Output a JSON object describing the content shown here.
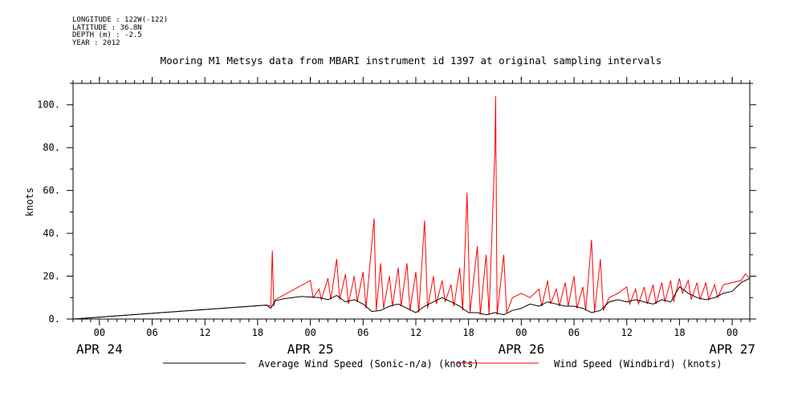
{
  "header": {
    "meta_lines": [
      "LONGITUDE : 122W(-122)",
      "LATITUDE : 36.8N",
      "DEPTH (m) : -2.5",
      "YEAR : 2012"
    ]
  },
  "chart_data": {
    "type": "line",
    "title": "Mooring M1 Metsys data from MBARI instrument id 1397 at original sampling intervals",
    "xlabel": "",
    "ylabel": "knots",
    "xlim": [
      "2012-04-23T21:00",
      "2012-04-27T02:00"
    ],
    "ylim": [
      0,
      110
    ],
    "yticks": [
      0,
      20,
      40,
      60,
      80,
      100
    ],
    "ytick_labels": [
      "0.",
      "20.",
      "40.",
      "60.",
      "80.",
      "100."
    ],
    "xticks": [
      {
        "t": "2012-04-24T00:00",
        "label": "00"
      },
      {
        "t": "2012-04-24T06:00",
        "label": "06"
      },
      {
        "t": "2012-04-24T12:00",
        "label": "12"
      },
      {
        "t": "2012-04-24T18:00",
        "label": "18"
      },
      {
        "t": "2012-04-25T00:00",
        "label": "00"
      },
      {
        "t": "2012-04-25T06:00",
        "label": "06"
      },
      {
        "t": "2012-04-25T12:00",
        "label": "12"
      },
      {
        "t": "2012-04-25T18:00",
        "label": "18"
      },
      {
        "t": "2012-04-26T00:00",
        "label": "00"
      },
      {
        "t": "2012-04-26T06:00",
        "label": "06"
      },
      {
        "t": "2012-04-26T12:00",
        "label": "12"
      },
      {
        "t": "2012-04-26T18:00",
        "label": "18"
      },
      {
        "t": "2012-04-27T00:00",
        "label": "00"
      }
    ],
    "date_labels": [
      {
        "t": "2012-04-24T00:00",
        "label": "APR 24"
      },
      {
        "t": "2012-04-25T00:00",
        "label": "APR 25"
      },
      {
        "t": "2012-04-26T00:00",
        "label": "APR 26"
      },
      {
        "t": "2012-04-27T00:00",
        "label": "APR 27"
      }
    ],
    "grid": false,
    "legend_position": "bottom",
    "series": [
      {
        "name": "Average Wind Speed (Sonic-n/a) (knots)",
        "color": "#000000",
        "points": [
          [
            "2012-04-23T21:00",
            0
          ],
          [
            "2012-04-24T19:00",
            6.5
          ],
          [
            "2012-04-24T19:30",
            5
          ],
          [
            "2012-04-24T20:00",
            8.5
          ],
          [
            "2012-04-24T21:00",
            9.5
          ],
          [
            "2012-04-24T23:00",
            10.5
          ],
          [
            "2012-04-25T01:00",
            10
          ],
          [
            "2012-04-25T02:00",
            9
          ],
          [
            "2012-04-25T03:00",
            11
          ],
          [
            "2012-04-25T04:00",
            8
          ],
          [
            "2012-04-25T05:00",
            9
          ],
          [
            "2012-04-25T06:00",
            7
          ],
          [
            "2012-04-25T07:00",
            3.5
          ],
          [
            "2012-04-25T08:00",
            4
          ],
          [
            "2012-04-25T09:00",
            6
          ],
          [
            "2012-04-25T10:00",
            7
          ],
          [
            "2012-04-25T11:00",
            5
          ],
          [
            "2012-04-25T12:00",
            3
          ],
          [
            "2012-04-25T13:00",
            6
          ],
          [
            "2012-04-25T14:00",
            8
          ],
          [
            "2012-04-25T15:00",
            10
          ],
          [
            "2012-04-25T16:00",
            8
          ],
          [
            "2012-04-25T17:00",
            6
          ],
          [
            "2012-04-25T18:00",
            3
          ],
          [
            "2012-04-25T19:00",
            3
          ],
          [
            "2012-04-25T20:00",
            2
          ],
          [
            "2012-04-25T21:00",
            3
          ],
          [
            "2012-04-25T22:00",
            2
          ],
          [
            "2012-04-25T23:00",
            4
          ],
          [
            "2012-04-26T00:00",
            5
          ],
          [
            "2012-04-26T01:00",
            7
          ],
          [
            "2012-04-26T02:00",
            6
          ],
          [
            "2012-04-26T03:00",
            8
          ],
          [
            "2012-04-26T04:00",
            7
          ],
          [
            "2012-04-26T05:00",
            6
          ],
          [
            "2012-04-26T06:00",
            6
          ],
          [
            "2012-04-26T07:00",
            5
          ],
          [
            "2012-04-26T08:00",
            3
          ],
          [
            "2012-04-26T09:00",
            4
          ],
          [
            "2012-04-26T10:00",
            8
          ],
          [
            "2012-04-26T11:00",
            9
          ],
          [
            "2012-04-26T12:00",
            8
          ],
          [
            "2012-04-26T13:00",
            9
          ],
          [
            "2012-04-26T14:00",
            8
          ],
          [
            "2012-04-26T15:00",
            7
          ],
          [
            "2012-04-26T16:00",
            9
          ],
          [
            "2012-04-26T17:00",
            8
          ],
          [
            "2012-04-26T18:00",
            15
          ],
          [
            "2012-04-26T19:00",
            12
          ],
          [
            "2012-04-26T20:00",
            10
          ],
          [
            "2012-04-26T21:00",
            9
          ],
          [
            "2012-04-26T22:00",
            10
          ],
          [
            "2012-04-26T23:00",
            12
          ],
          [
            "2012-04-27T00:00",
            13
          ],
          [
            "2012-04-27T01:00",
            17
          ],
          [
            "2012-04-27T02:00",
            19
          ]
        ]
      },
      {
        "name": "Wind Speed (Windbird) (knots)",
        "color": "#ff0000",
        "points": [
          [
            "2012-04-23T21:00",
            0
          ],
          [
            "2012-04-24T19:00",
            6.5
          ],
          [
            "2012-04-24T19:30",
            6
          ],
          [
            "2012-04-24T19:40",
            32
          ],
          [
            "2012-04-24T19:50",
            6
          ],
          [
            "2012-04-24T20:00",
            9
          ],
          [
            "2012-04-25T00:00",
            18
          ],
          [
            "2012-04-25T00:20",
            10
          ],
          [
            "2012-04-25T01:00",
            14
          ],
          [
            "2012-04-25T01:15",
            9
          ],
          [
            "2012-04-25T02:00",
            19
          ],
          [
            "2012-04-25T02:20",
            9
          ],
          [
            "2012-04-25T03:00",
            28
          ],
          [
            "2012-04-25T03:20",
            9
          ],
          [
            "2012-04-25T04:00",
            21
          ],
          [
            "2012-04-25T04:20",
            7
          ],
          [
            "2012-04-25T05:00",
            20
          ],
          [
            "2012-04-25T05:20",
            8
          ],
          [
            "2012-04-25T06:00",
            22
          ],
          [
            "2012-04-25T06:20",
            5
          ],
          [
            "2012-04-25T07:15",
            47
          ],
          [
            "2012-04-25T07:30",
            4
          ],
          [
            "2012-04-25T08:00",
            26
          ],
          [
            "2012-04-25T08:20",
            5
          ],
          [
            "2012-04-25T09:00",
            20
          ],
          [
            "2012-04-25T09:20",
            6
          ],
          [
            "2012-04-25T10:00",
            24
          ],
          [
            "2012-04-25T10:20",
            6
          ],
          [
            "2012-04-25T11:00",
            26
          ],
          [
            "2012-04-25T11:20",
            4
          ],
          [
            "2012-04-25T12:00",
            22
          ],
          [
            "2012-04-25T12:20",
            3
          ],
          [
            "2012-04-25T13:00",
            46
          ],
          [
            "2012-04-25T13:20",
            5
          ],
          [
            "2012-04-25T14:00",
            20
          ],
          [
            "2012-04-25T14:20",
            7
          ],
          [
            "2012-04-25T15:00",
            18
          ],
          [
            "2012-04-25T15:20",
            8
          ],
          [
            "2012-04-25T16:00",
            16
          ],
          [
            "2012-04-25T16:20",
            6
          ],
          [
            "2012-04-25T17:00",
            24
          ],
          [
            "2012-04-25T17:20",
            4
          ],
          [
            "2012-04-25T17:50",
            59
          ],
          [
            "2012-04-25T18:10",
            3
          ],
          [
            "2012-04-25T19:00",
            34
          ],
          [
            "2012-04-25T19:20",
            2
          ],
          [
            "2012-04-25T20:00",
            30
          ],
          [
            "2012-04-25T20:20",
            2
          ],
          [
            "2012-04-25T21:00",
            79
          ],
          [
            "2012-04-25T21:05",
            104
          ],
          [
            "2012-04-25T21:15",
            2
          ],
          [
            "2012-04-25T22:00",
            30
          ],
          [
            "2012-04-25T22:20",
            3
          ],
          [
            "2012-04-25T23:00",
            10
          ],
          [
            "2012-04-26T00:00",
            12
          ],
          [
            "2012-04-26T01:00",
            10
          ],
          [
            "2012-04-26T02:00",
            14
          ],
          [
            "2012-04-26T02:20",
            6
          ],
          [
            "2012-04-26T03:00",
            18
          ],
          [
            "2012-04-26T03:20",
            7
          ],
          [
            "2012-04-26T04:00",
            14
          ],
          [
            "2012-04-26T04:20",
            6
          ],
          [
            "2012-04-26T05:00",
            17
          ],
          [
            "2012-04-26T05:20",
            6
          ],
          [
            "2012-04-26T06:00",
            20
          ],
          [
            "2012-04-26T06:20",
            5
          ],
          [
            "2012-04-26T07:00",
            15
          ],
          [
            "2012-04-26T07:20",
            4
          ],
          [
            "2012-04-26T08:00",
            37
          ],
          [
            "2012-04-26T08:20",
            3
          ],
          [
            "2012-04-26T09:00",
            28
          ],
          [
            "2012-04-26T09:20",
            4
          ],
          [
            "2012-04-26T10:00",
            10
          ],
          [
            "2012-04-26T11:00",
            12
          ],
          [
            "2012-04-26T12:00",
            15
          ],
          [
            "2012-04-26T12:20",
            7
          ],
          [
            "2012-04-26T13:00",
            14
          ],
          [
            "2012-04-26T13:20",
            7
          ],
          [
            "2012-04-26T14:00",
            15
          ],
          [
            "2012-04-26T14:20",
            7
          ],
          [
            "2012-04-26T15:00",
            16
          ],
          [
            "2012-04-26T15:20",
            7
          ],
          [
            "2012-04-26T16:00",
            17
          ],
          [
            "2012-04-26T16:20",
            8
          ],
          [
            "2012-04-26T17:00",
            18
          ],
          [
            "2012-04-26T17:20",
            8
          ],
          [
            "2012-04-26T18:00",
            19
          ],
          [
            "2012-04-26T18:20",
            12
          ],
          [
            "2012-04-26T19:00",
            18
          ],
          [
            "2012-04-26T19:20",
            9
          ],
          [
            "2012-04-26T20:00",
            17
          ],
          [
            "2012-04-26T20:20",
            9
          ],
          [
            "2012-04-26T21:00",
            17
          ],
          [
            "2012-04-26T21:20",
            9
          ],
          [
            "2012-04-26T22:00",
            16
          ],
          [
            "2012-04-26T22:20",
            10
          ],
          [
            "2012-04-26T23:00",
            16
          ],
          [
            "2012-04-27T00:00",
            17
          ],
          [
            "2012-04-27T01:00",
            18
          ],
          [
            "2012-04-27T01:30",
            21
          ],
          [
            "2012-04-27T02:00",
            19
          ]
        ]
      }
    ]
  }
}
